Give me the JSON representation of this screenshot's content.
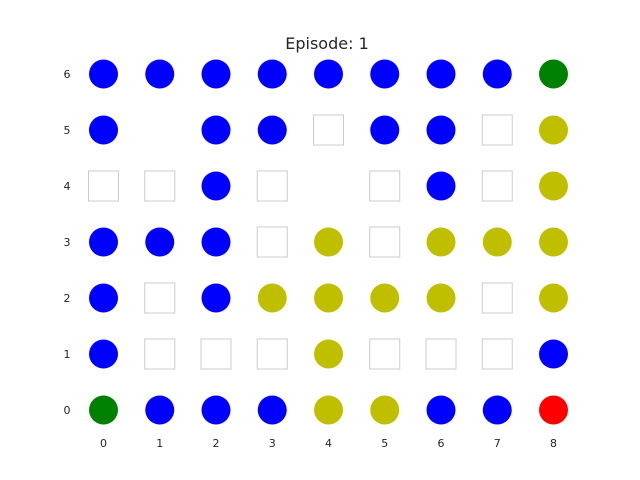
{
  "title": "Episode: 1",
  "x_ticks": [
    "0",
    "1",
    "2",
    "3",
    "4",
    "5",
    "6",
    "7",
    "8"
  ],
  "y_ticks": [
    "0",
    "1",
    "2",
    "3",
    "4",
    "5",
    "6"
  ],
  "colors": {
    "blue": "#0000ff",
    "yellow": "#bfbf00",
    "green": "#008000",
    "red": "#ff0000",
    "empty_fill": "#ffffff",
    "empty_stroke": "#cccccc"
  },
  "grid": [
    [
      "blue",
      "blue",
      "blue",
      "blue",
      "blue",
      "blue",
      "blue",
      "blue",
      "green"
    ],
    [
      "blue",
      "none",
      "blue",
      "blue",
      "empty",
      "blue",
      "blue",
      "empty",
      "yellow"
    ],
    [
      "empty",
      "empty",
      "blue",
      "empty",
      "none",
      "empty",
      "blue",
      "empty",
      "yellow"
    ],
    [
      "blue",
      "blue",
      "blue",
      "empty",
      "yellow",
      "empty",
      "yellow",
      "yellow",
      "yellow"
    ],
    [
      "blue",
      "empty",
      "blue",
      "yellow",
      "yellow",
      "yellow",
      "yellow",
      "empty",
      "yellow"
    ],
    [
      "blue",
      "empty",
      "empty",
      "empty",
      "yellow",
      "empty",
      "empty",
      "empty",
      "blue"
    ],
    [
      "green",
      "blue",
      "blue",
      "blue",
      "yellow",
      "yellow",
      "blue",
      "blue",
      "red"
    ]
  ]
}
